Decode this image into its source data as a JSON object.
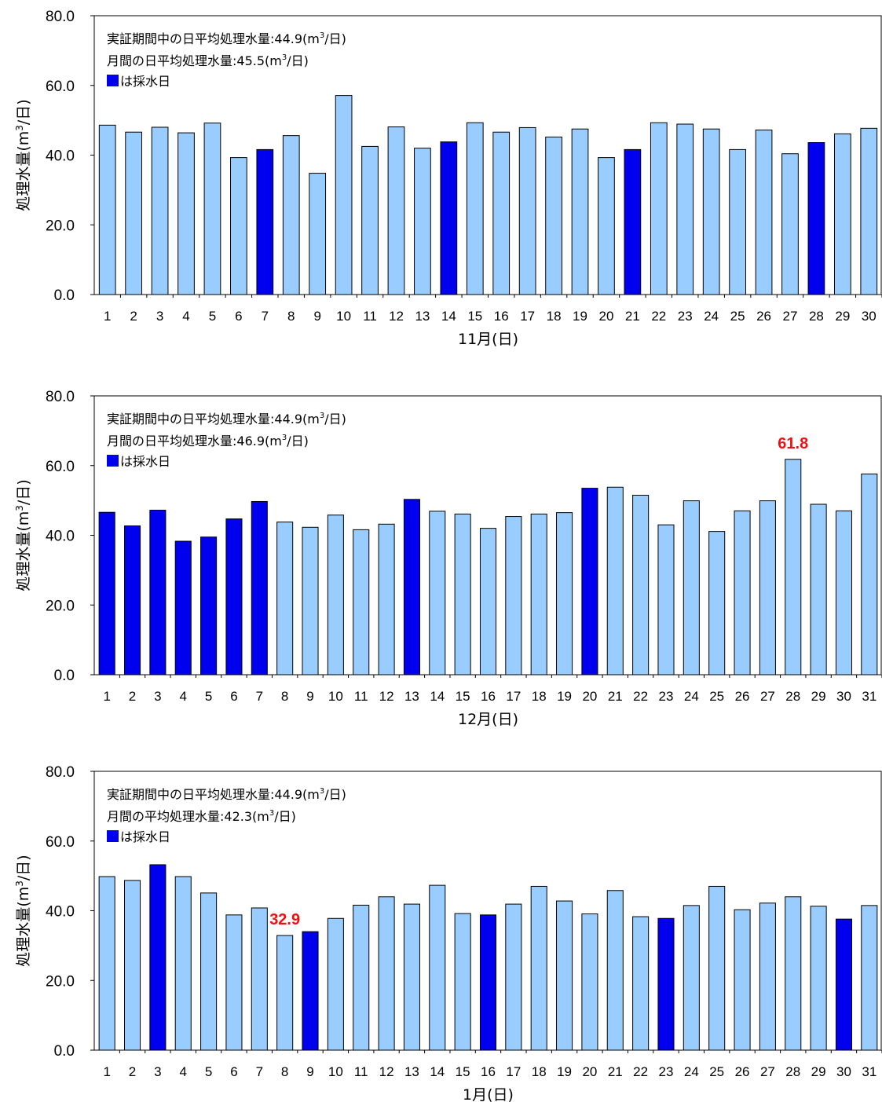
{
  "colors": {
    "normal_bar": "#99ccff",
    "sampling_bar": "#0000ee",
    "bar_outline": "#000000",
    "highlight_label": "#ee1111"
  },
  "chart_data": [
    {
      "type": "bar",
      "ylabel_main": "処理水量(m",
      "ylabel_sup": "3",
      "ylabel_tail": "/日)",
      "xlabel": "11月(日)",
      "ylim": [
        0,
        80
      ],
      "yticks": [
        "0.0",
        "20.0",
        "40.0",
        "60.0",
        "80.0"
      ],
      "annotations": [
        {
          "pre": "実証期間中の日平均処理水量:44.9(m",
          "sup": "3",
          "post": "/日)"
        },
        {
          "pre": "月間の日平均処理水量:45.5(m",
          "sup": "3",
          "post": "/日)"
        }
      ],
      "legend_text": "は採水日",
      "categories": [
        "1",
        "2",
        "3",
        "4",
        "5",
        "6",
        "7",
        "8",
        "9",
        "10",
        "11",
        "12",
        "13",
        "14",
        "15",
        "16",
        "17",
        "18",
        "19",
        "20",
        "21",
        "22",
        "23",
        "24",
        "25",
        "26",
        "27",
        "28",
        "29",
        "30"
      ],
      "values": [
        48.6,
        46.6,
        48.0,
        46.4,
        49.2,
        39.3,
        41.6,
        45.6,
        34.8,
        57.1,
        42.5,
        48.1,
        42.0,
        43.8,
        49.3,
        46.6,
        47.9,
        45.2,
        47.5,
        39.3,
        41.6,
        49.3,
        48.9,
        47.5,
        41.6,
        47.2,
        40.4,
        43.6,
        46.1,
        47.7
      ],
      "sampling_days": [
        "7",
        "14",
        "21",
        "28"
      ],
      "data_labels": []
    },
    {
      "type": "bar",
      "ylabel_main": "処理水量(m",
      "ylabel_sup": "3",
      "ylabel_tail": "/日)",
      "xlabel": "12月(日)",
      "ylim": [
        0,
        80
      ],
      "yticks": [
        "0.0",
        "20.0",
        "40.0",
        "60.0",
        "80.0"
      ],
      "annotations": [
        {
          "pre": "実証期間中の日平均処理水量:44.9(m",
          "sup": "3",
          "post": "/日)"
        },
        {
          "pre": "月間の日平均処理水量:46.9(m",
          "sup": "3",
          "post": "/日)"
        }
      ],
      "legend_text": "は採水日",
      "categories": [
        "1",
        "2",
        "3",
        "4",
        "5",
        "6",
        "7",
        "8",
        "9",
        "10",
        "11",
        "12",
        "13",
        "14",
        "15",
        "16",
        "17",
        "18",
        "19",
        "20",
        "21",
        "22",
        "23",
        "24",
        "25",
        "26",
        "27",
        "28",
        "29",
        "30",
        "31"
      ],
      "values": [
        46.6,
        42.7,
        47.2,
        38.3,
        39.5,
        44.7,
        49.7,
        43.8,
        42.3,
        45.8,
        41.6,
        43.2,
        50.3,
        46.9,
        46.1,
        42.0,
        45.4,
        46.1,
        46.5,
        53.5,
        53.8,
        51.5,
        43.0,
        49.9,
        41.1,
        47.0,
        49.9,
        61.8,
        48.9,
        47.0,
        57.6
      ],
      "sampling_days": [
        "1",
        "2",
        "3",
        "4",
        "5",
        "6",
        "7",
        "13",
        "20"
      ],
      "data_labels": [
        {
          "category": "28",
          "text": "61.8"
        }
      ]
    },
    {
      "type": "bar",
      "ylabel_main": "処理水量(m",
      "ylabel_sup": "3",
      "ylabel_tail": "/日)",
      "xlabel": "1月(日)",
      "ylim": [
        0,
        80
      ],
      "yticks": [
        "0.0",
        "20.0",
        "40.0",
        "60.0",
        "80.0"
      ],
      "annotations": [
        {
          "pre": "実証期間中の日平均処理水量:44.9(m",
          "sup": "3",
          "post": "/日)"
        },
        {
          "pre": "月間の平均処理水量:42.3(m",
          "sup": "3",
          "post": "/日)"
        }
      ],
      "legend_text": "は採水日",
      "categories": [
        "1",
        "2",
        "3",
        "4",
        "5",
        "6",
        "7",
        "8",
        "9",
        "10",
        "11",
        "12",
        "13",
        "14",
        "15",
        "16",
        "17",
        "18",
        "19",
        "20",
        "21",
        "22",
        "23",
        "24",
        "25",
        "26",
        "27",
        "28",
        "29",
        "30",
        "31"
      ],
      "values": [
        49.8,
        48.7,
        53.2,
        49.8,
        45.1,
        38.8,
        40.8,
        32.9,
        34.0,
        37.8,
        41.6,
        44.0,
        41.9,
        47.3,
        39.2,
        38.8,
        41.9,
        47.0,
        42.8,
        39.1,
        45.8,
        38.3,
        37.8,
        41.5,
        47.0,
        40.3,
        42.2,
        44.0,
        41.3,
        37.6,
        41.5
      ],
      "sampling_days": [
        "3",
        "9",
        "16",
        "23",
        "30"
      ],
      "data_labels": [
        {
          "category": "8",
          "text": "32.9"
        }
      ]
    }
  ]
}
